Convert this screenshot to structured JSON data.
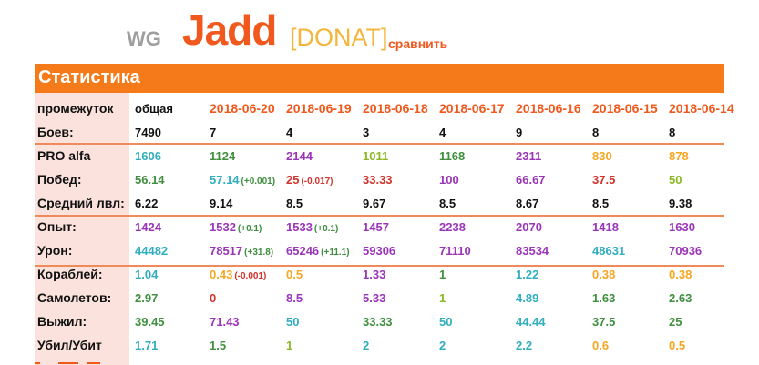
{
  "header": {
    "wg": "WG",
    "nick": "Jadd",
    "clan": "[DONAT]",
    "compare": "сравнить"
  },
  "section_title": "Статистика",
  "columns": [
    "общая",
    "2018-06-20",
    "2018-06-19",
    "2018-06-18",
    "2018-06-17",
    "2018-06-16",
    "2018-06-15",
    "2018-06-14"
  ],
  "period_label": "промежуток",
  "colors": {
    "accent": "#f57a1a",
    "teal": "#2eaebf",
    "orange": "#f5a623",
    "purple": "#9b35b8",
    "red": "#d0342c",
    "green": "#3f8f3f",
    "lime": "#8ab822"
  },
  "rows": [
    {
      "label": "Боев:",
      "cells": [
        {
          "v": "7490",
          "c": "black"
        },
        {
          "v": "7",
          "c": "black"
        },
        {
          "v": "4",
          "c": "black"
        },
        {
          "v": "3",
          "c": "black"
        },
        {
          "v": "4",
          "c": "black"
        },
        {
          "v": "9",
          "c": "black"
        },
        {
          "v": "8",
          "c": "black"
        },
        {
          "v": "8",
          "c": "black"
        }
      ]
    },
    {
      "label": "PRO alfa",
      "cells": [
        {
          "v": "1606",
          "c": "teal"
        },
        {
          "v": "1124",
          "c": "green"
        },
        {
          "v": "2144",
          "c": "purple"
        },
        {
          "v": "1011",
          "c": "lime"
        },
        {
          "v": "1168",
          "c": "green"
        },
        {
          "v": "2311",
          "c": "purple"
        },
        {
          "v": "830",
          "c": "orange"
        },
        {
          "v": "878",
          "c": "orange"
        }
      ]
    },
    {
      "label": "Побед:",
      "cells": [
        {
          "v": "56.14",
          "c": "green"
        },
        {
          "v": "57.14",
          "c": "teal",
          "d": "(+0.001)",
          "dc": "green"
        },
        {
          "v": "25",
          "c": "red",
          "d": "(-0.017)",
          "dc": "red"
        },
        {
          "v": "33.33",
          "c": "red"
        },
        {
          "v": "100",
          "c": "purple"
        },
        {
          "v": "66.67",
          "c": "purple"
        },
        {
          "v": "37.5",
          "c": "red"
        },
        {
          "v": "50",
          "c": "lime"
        }
      ]
    },
    {
      "label": "Средний лвл:",
      "cells": [
        {
          "v": "6.22",
          "c": "black"
        },
        {
          "v": "9.14",
          "c": "black"
        },
        {
          "v": "8.5",
          "c": "black"
        },
        {
          "v": "9.67",
          "c": "black"
        },
        {
          "v": "8.5",
          "c": "black"
        },
        {
          "v": "8.67",
          "c": "black"
        },
        {
          "v": "8.5",
          "c": "black"
        },
        {
          "v": "9.38",
          "c": "black"
        }
      ]
    },
    {
      "label": "Опыт:",
      "cells": [
        {
          "v": "1424",
          "c": "purple"
        },
        {
          "v": "1532",
          "c": "purple",
          "d": "(+0.1)",
          "dc": "green"
        },
        {
          "v": "1533",
          "c": "purple",
          "d": "(+0.1)",
          "dc": "green"
        },
        {
          "v": "1457",
          "c": "purple"
        },
        {
          "v": "2238",
          "c": "purple"
        },
        {
          "v": "2070",
          "c": "purple"
        },
        {
          "v": "1418",
          "c": "purple"
        },
        {
          "v": "1630",
          "c": "purple"
        }
      ]
    },
    {
      "label": "Урон:",
      "cells": [
        {
          "v": "44482",
          "c": "teal"
        },
        {
          "v": "78517",
          "c": "purple",
          "d": "(+31.8)",
          "dc": "green"
        },
        {
          "v": "65246",
          "c": "purple",
          "d": "(+11.1)",
          "dc": "green"
        },
        {
          "v": "59306",
          "c": "purple"
        },
        {
          "v": "71110",
          "c": "purple"
        },
        {
          "v": "83534",
          "c": "purple"
        },
        {
          "v": "48631",
          "c": "teal"
        },
        {
          "v": "70936",
          "c": "purple"
        }
      ]
    },
    {
      "label": "Кораблей:",
      "cells": [
        {
          "v": "1.04",
          "c": "teal"
        },
        {
          "v": "0.43",
          "c": "orange",
          "d": "(-0.001)",
          "dc": "red"
        },
        {
          "v": "0.5",
          "c": "orange"
        },
        {
          "v": "1.33",
          "c": "purple"
        },
        {
          "v": "1",
          "c": "green"
        },
        {
          "v": "1.22",
          "c": "teal"
        },
        {
          "v": "0.38",
          "c": "orange"
        },
        {
          "v": "0.38",
          "c": "orange"
        }
      ]
    },
    {
      "label": "Самолетов:",
      "cells": [
        {
          "v": "2.97",
          "c": "green"
        },
        {
          "v": "0",
          "c": "red"
        },
        {
          "v": "8.5",
          "c": "purple"
        },
        {
          "v": "5.33",
          "c": "purple"
        },
        {
          "v": "1",
          "c": "lime"
        },
        {
          "v": "4.89",
          "c": "teal"
        },
        {
          "v": "1.63",
          "c": "green"
        },
        {
          "v": "2.63",
          "c": "green"
        }
      ]
    },
    {
      "label": "Выжил:",
      "cells": [
        {
          "v": "39.45",
          "c": "green"
        },
        {
          "v": "71.43",
          "c": "purple"
        },
        {
          "v": "50",
          "c": "teal"
        },
        {
          "v": "33.33",
          "c": "green"
        },
        {
          "v": "50",
          "c": "teal"
        },
        {
          "v": "44.44",
          "c": "teal"
        },
        {
          "v": "37.5",
          "c": "green"
        },
        {
          "v": "25",
          "c": "green"
        }
      ]
    },
    {
      "label": "Убил/Убит",
      "cells": [
        {
          "v": "1.71",
          "c": "teal"
        },
        {
          "v": "1.5",
          "c": "green"
        },
        {
          "v": "1",
          "c": "lime"
        },
        {
          "v": "2",
          "c": "teal"
        },
        {
          "v": "2",
          "c": "teal"
        },
        {
          "v": "2.2",
          "c": "teal"
        },
        {
          "v": "0.6",
          "c": "orange"
        },
        {
          "v": "0.5",
          "c": "orange"
        }
      ]
    }
  ]
}
